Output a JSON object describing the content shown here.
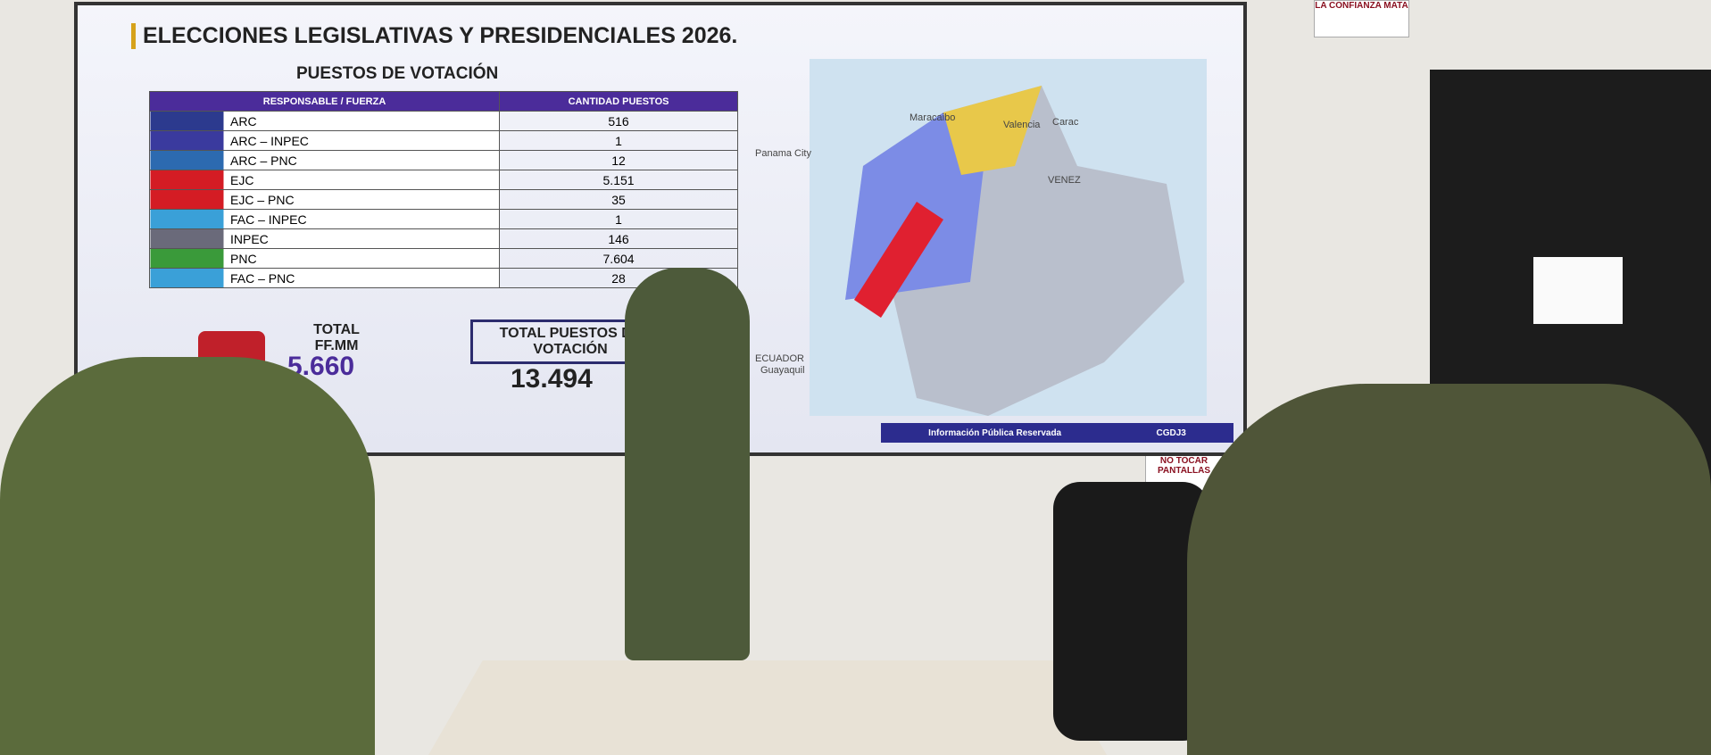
{
  "screen": {
    "title": "ELECCIONES LEGISLATIVAS Y PRESIDENCIALES 2026.",
    "subtitle": "PUESTOS DE VOTACIÓN",
    "table": {
      "header": [
        "RESPONSABLE / FUERZA",
        "CANTIDAD PUESTOS"
      ],
      "rows": [
        [
          "ARC",
          "516"
        ],
        [
          "ARC – INPEC",
          "1"
        ],
        [
          "ARC – PNC",
          "12"
        ],
        [
          "EJC",
          "5.151"
        ],
        [
          "EJC – PNC",
          "35"
        ],
        [
          "FAC – INPEC",
          "1"
        ],
        [
          "INPEC",
          "146"
        ],
        [
          "PNC",
          "7.604"
        ],
        [
          "FAC – PNC",
          "28"
        ]
      ]
    },
    "total_ffmm": {
      "label": "TOTAL FF.MM",
      "value": "5.660"
    },
    "total_puestos": {
      "label": "TOTAL PUESTOS DE VOTACIÓN",
      "value": "13.494"
    },
    "footer": [
      "Información Pública Reservada",
      "CGDJ3"
    ],
    "map_labels": [
      "Panama City",
      "Maracaibo",
      "Valencia",
      "Carac",
      "VENEZ",
      "ECUADOR",
      "Guayaquil"
    ]
  },
  "wall": {
    "sign": "LA CONFIANZA MATA",
    "notice": "NO TOCAR PANTALLAS"
  }
}
